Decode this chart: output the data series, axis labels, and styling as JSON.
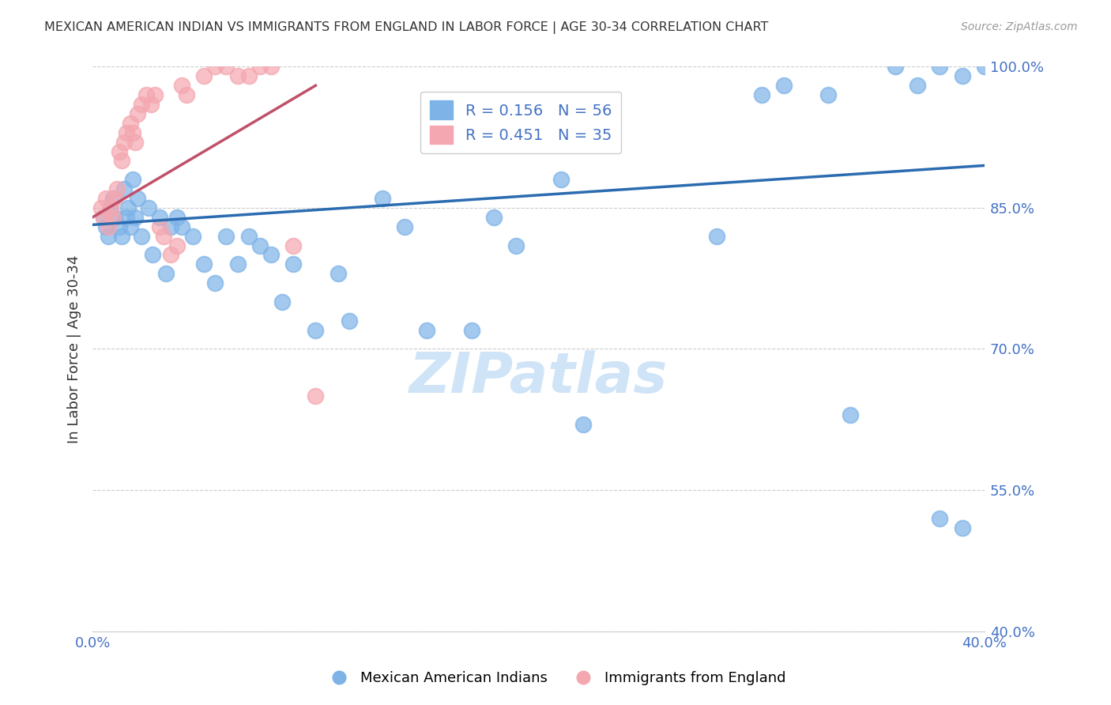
{
  "title": "MEXICAN AMERICAN INDIAN VS IMMIGRANTS FROM ENGLAND IN LABOR FORCE | AGE 30-34 CORRELATION CHART",
  "source": "Source: ZipAtlas.com",
  "ylabel": "In Labor Force | Age 30-34",
  "y_tick_labels": [
    "40.0%",
    "55.0%",
    "70.0%",
    "85.0%",
    "100.0%"
  ],
  "y_tick_values": [
    0.4,
    0.55,
    0.7,
    0.85,
    1.0
  ],
  "x_tick_labels": [
    "0.0%",
    "",
    "",
    "",
    "",
    "",
    "",
    "",
    "40.0%"
  ],
  "x_tick_values": [
    0.0,
    0.05,
    0.1,
    0.15,
    0.2,
    0.25,
    0.3,
    0.35,
    0.4
  ],
  "xlim": [
    0.0,
    0.4
  ],
  "ylim": [
    0.4,
    1.0
  ],
  "legend_blue_label": "Mexican American Indians",
  "legend_pink_label": "Immigrants from England",
  "R_blue": 0.156,
  "N_blue": 56,
  "R_pink": 0.451,
  "N_pink": 35,
  "blue_color": "#7EB3E8",
  "pink_color": "#F4A7B0",
  "line_blue": "#2B6CB0",
  "line_pink": "#C0506A",
  "title_color": "#333333",
  "axis_label_color": "#333333",
  "tick_color": "#4472C4",
  "source_color": "#999999",
  "grid_color": "#CCCCCC",
  "watermark_color": "#D0E4F7",
  "blue_scatter_x": [
    0.005,
    0.006,
    0.007,
    0.008,
    0.009,
    0.01,
    0.012,
    0.013,
    0.014,
    0.015,
    0.016,
    0.017,
    0.018,
    0.019,
    0.02,
    0.022,
    0.025,
    0.027,
    0.03,
    0.033,
    0.035,
    0.038,
    0.04,
    0.045,
    0.05,
    0.055,
    0.06,
    0.065,
    0.07,
    0.075,
    0.08,
    0.085,
    0.09,
    0.1,
    0.11,
    0.115,
    0.13,
    0.14,
    0.15,
    0.17,
    0.18,
    0.19,
    0.21,
    0.22,
    0.28,
    0.3,
    0.31,
    0.33,
    0.34,
    0.36,
    0.37,
    0.38,
    0.39,
    0.4,
    0.38,
    0.39
  ],
  "blue_scatter_y": [
    0.84,
    0.83,
    0.82,
    0.85,
    0.86,
    0.84,
    0.83,
    0.82,
    0.87,
    0.84,
    0.85,
    0.83,
    0.88,
    0.84,
    0.86,
    0.82,
    0.85,
    0.8,
    0.84,
    0.78,
    0.83,
    0.84,
    0.83,
    0.82,
    0.79,
    0.77,
    0.82,
    0.79,
    0.82,
    0.81,
    0.8,
    0.75,
    0.79,
    0.72,
    0.78,
    0.73,
    0.86,
    0.83,
    0.72,
    0.72,
    0.84,
    0.81,
    0.88,
    0.62,
    0.82,
    0.97,
    0.98,
    0.97,
    0.63,
    1.0,
    0.98,
    1.0,
    0.99,
    1.0,
    0.52,
    0.51
  ],
  "pink_scatter_x": [
    0.004,
    0.005,
    0.006,
    0.007,
    0.008,
    0.009,
    0.01,
    0.011,
    0.012,
    0.013,
    0.014,
    0.015,
    0.017,
    0.018,
    0.019,
    0.02,
    0.022,
    0.024,
    0.026,
    0.028,
    0.03,
    0.032,
    0.035,
    0.038,
    0.04,
    0.042,
    0.05,
    0.055,
    0.06,
    0.065,
    0.07,
    0.075,
    0.08,
    0.09,
    0.1
  ],
  "pink_scatter_y": [
    0.85,
    0.84,
    0.86,
    0.83,
    0.85,
    0.84,
    0.86,
    0.87,
    0.91,
    0.9,
    0.92,
    0.93,
    0.94,
    0.93,
    0.92,
    0.95,
    0.96,
    0.97,
    0.96,
    0.97,
    0.83,
    0.82,
    0.8,
    0.81,
    0.98,
    0.97,
    0.99,
    1.0,
    1.0,
    0.99,
    0.99,
    1.0,
    1.0,
    0.81,
    0.65
  ],
  "blue_line_x": [
    0.0,
    0.4
  ],
  "blue_line_y": [
    0.832,
    0.895
  ],
  "pink_line_x": [
    0.0,
    0.1
  ],
  "pink_line_y": [
    0.84,
    0.98
  ]
}
